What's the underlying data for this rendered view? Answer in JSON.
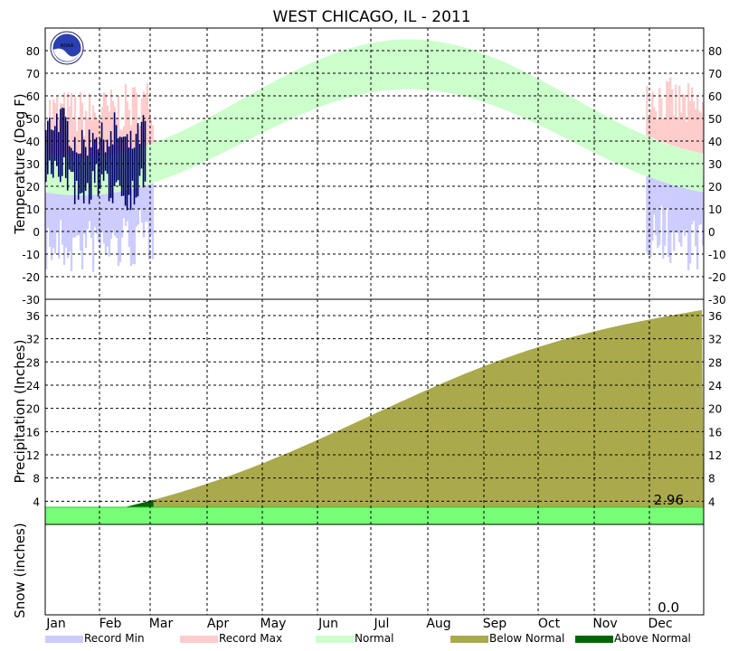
{
  "chart_data": {
    "title": "WEST CHICAGO, IL - 2011",
    "months": [
      "Jan",
      "Feb",
      "Mar",
      "Apr",
      "May",
      "Jun",
      "Jul",
      "Aug",
      "Sep",
      "Oct",
      "Nov",
      "Dec"
    ],
    "legend": [
      {
        "label": "Record Min",
        "color": "#ccccff"
      },
      {
        "label": "Record Max",
        "color": "#ffcccc"
      },
      {
        "label": "Normal",
        "color": "#ccffcc"
      },
      {
        "label": "Below Normal",
        "color": "#aaaa4c"
      },
      {
        "label": "Above Normal",
        "color": "#006600"
      }
    ],
    "temperature": {
      "type": "area",
      "ylabel": "Temperature (Deg F)",
      "ylim": [
        -30,
        90
      ],
      "yticks": [
        -30,
        -20,
        -10,
        0,
        10,
        20,
        30,
        40,
        50,
        60,
        70,
        80
      ],
      "normal_high_range": [
        33,
        85
      ],
      "normal_low_range": [
        16,
        63
      ],
      "observed_days": 56,
      "observed_color": "#000066",
      "logo": "noaa-logo"
    },
    "precipitation": {
      "type": "area",
      "ylabel": "Precipitation (Inches)",
      "ylim": [
        0,
        38.8
      ],
      "yticks": [
        4,
        8,
        12,
        16,
        20,
        24,
        28,
        32,
        36
      ],
      "normal_annual_total": 37,
      "observed_total": 2.96,
      "observed_total_label": "2.96",
      "observed_color": "#77ff77",
      "normal_color": "#aaaa4c",
      "above_color": "#006600"
    },
    "snow": {
      "ylabel": "Snow (inches)",
      "total_label": "0.0"
    }
  }
}
